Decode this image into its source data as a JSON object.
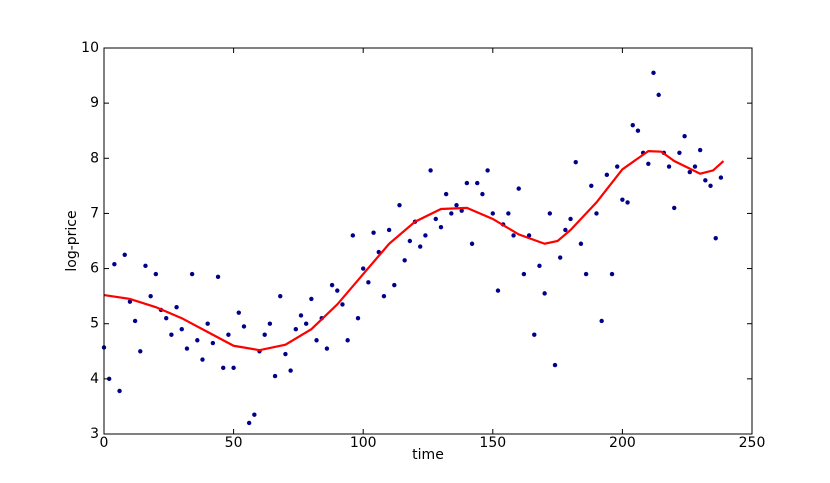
{
  "chart_data": {
    "type": "scatter",
    "x_label": "time",
    "y_label": "log-price",
    "xlim": [
      0,
      250
    ],
    "ylim": [
      3,
      10
    ],
    "xticks": [
      0,
      50,
      100,
      150,
      200,
      250
    ],
    "yticks": [
      3,
      4,
      5,
      6,
      7,
      8,
      9,
      10
    ],
    "series": [
      {
        "type": "scatter",
        "color": "#00008b",
        "x": [
          0,
          2,
          4,
          6,
          8,
          10,
          12,
          14,
          16,
          18,
          20,
          22,
          24,
          26,
          28,
          30,
          32,
          34,
          36,
          38,
          40,
          42,
          44,
          46,
          48,
          50,
          52,
          54,
          56,
          58,
          60,
          62,
          64,
          66,
          68,
          70,
          72,
          74,
          76,
          78,
          80,
          82,
          84,
          86,
          88,
          90,
          92,
          94,
          96,
          98,
          100,
          102,
          104,
          106,
          108,
          110,
          112,
          114,
          116,
          118,
          120,
          122,
          124,
          126,
          128,
          130,
          132,
          134,
          136,
          138,
          140,
          142,
          144,
          146,
          148,
          150,
          152,
          154,
          156,
          158,
          160,
          162,
          164,
          166,
          168,
          170,
          172,
          174,
          176,
          178,
          180,
          182,
          184,
          186,
          188,
          190,
          192,
          194,
          196,
          198,
          200,
          202,
          204,
          206,
          208,
          210,
          212,
          214,
          216,
          218,
          220,
          222,
          224,
          226,
          228,
          230,
          232,
          234,
          236,
          238
        ],
        "values": [
          4.57,
          4.0,
          6.08,
          3.78,
          6.25,
          5.4,
          5.05,
          4.5,
          6.05,
          5.5,
          5.9,
          5.25,
          5.1,
          4.8,
          5.3,
          4.9,
          4.55,
          5.9,
          4.7,
          4.35,
          5.0,
          4.65,
          5.85,
          4.2,
          4.8,
          4.2,
          5.2,
          4.95,
          3.2,
          3.35,
          4.5,
          4.8,
          5.0,
          4.05,
          5.5,
          4.45,
          4.15,
          4.9,
          5.15,
          5.0,
          5.45,
          4.7,
          5.1,
          4.55,
          5.7,
          5.6,
          5.35,
          4.7,
          6.6,
          5.1,
          6.0,
          5.75,
          6.65,
          6.3,
          5.5,
          6.7,
          5.7,
          7.15,
          6.15,
          6.5,
          6.85,
          6.4,
          6.6,
          7.78,
          6.9,
          6.75,
          7.35,
          7.0,
          7.15,
          7.05,
          7.55,
          6.45,
          7.55,
          7.35,
          7.78,
          7.0,
          5.6,
          6.8,
          7.0,
          6.6,
          7.45,
          5.9,
          6.6,
          4.8,
          6.05,
          5.55,
          7.0,
          4.25,
          6.2,
          6.7,
          6.9,
          7.93,
          6.45,
          5.9,
          7.5,
          7.0,
          5.05,
          7.7,
          5.9,
          7.85,
          7.25,
          7.2,
          8.6,
          8.5,
          8.1,
          7.9,
          9.55,
          9.15,
          8.1,
          7.85,
          7.1,
          8.1,
          8.4,
          7.75,
          7.85,
          8.15,
          7.6,
          7.5,
          6.55,
          7.65
        ]
      },
      {
        "type": "line",
        "color": "#ff0000",
        "x": [
          0,
          10,
          20,
          30,
          40,
          50,
          60,
          70,
          80,
          90,
          100,
          110,
          120,
          130,
          140,
          150,
          160,
          170,
          175,
          180,
          190,
          200,
          210,
          215,
          220,
          230,
          235,
          239
        ],
        "values": [
          5.52,
          5.45,
          5.3,
          5.1,
          4.85,
          4.6,
          4.52,
          4.62,
          4.9,
          5.35,
          5.9,
          6.45,
          6.85,
          7.08,
          7.1,
          6.9,
          6.62,
          6.45,
          6.5,
          6.7,
          7.2,
          7.8,
          8.13,
          8.12,
          7.95,
          7.72,
          7.78,
          7.95
        ]
      }
    ]
  }
}
